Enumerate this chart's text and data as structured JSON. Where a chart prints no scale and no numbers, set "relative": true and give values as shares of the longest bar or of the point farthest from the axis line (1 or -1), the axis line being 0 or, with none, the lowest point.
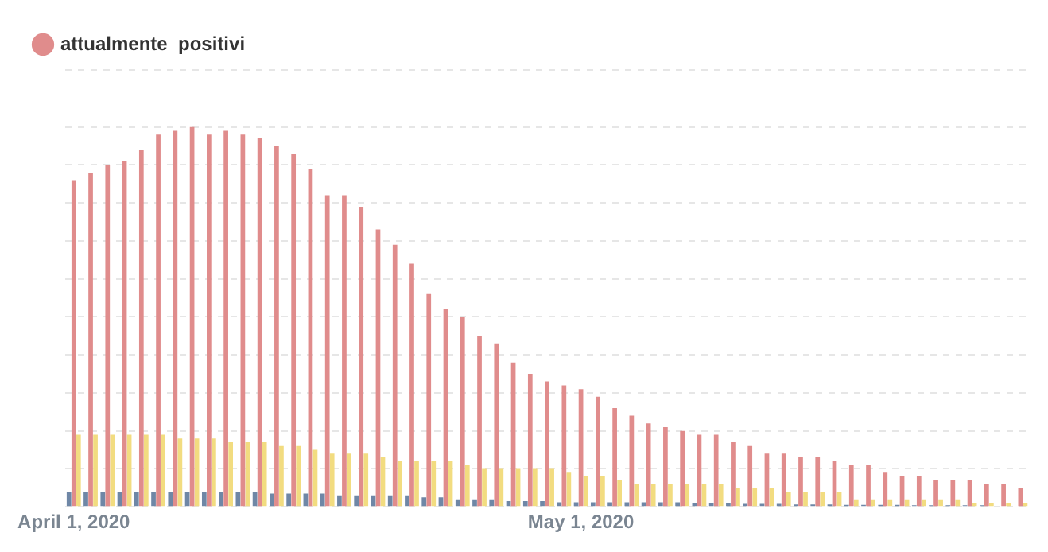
{
  "chart_data": {
    "type": "bar",
    "relative": true,
    "grid": "y",
    "legend": "top left",
    "categories": [
      "April 1, 2020",
      null,
      null,
      null,
      null,
      null,
      null,
      null,
      null,
      null,
      null,
      null,
      null,
      null,
      null,
      null,
      null,
      null,
      null,
      null,
      null,
      null,
      null,
      null,
      null,
      null,
      null,
      null,
      null,
      null,
      "May 1, 2020",
      null,
      null,
      null,
      null,
      null,
      null,
      null,
      null,
      null,
      null,
      null,
      null,
      null,
      null,
      null,
      null,
      null,
      null,
      null,
      null,
      null,
      null,
      null,
      null,
      null,
      null
    ],
    "series": [
      {
        "color": "#6f87a6",
        "values": [
          0.04,
          0.04,
          0.04,
          0.04,
          0.04,
          0.04,
          0.04,
          0.04,
          0.04,
          0.04,
          0.04,
          0.04,
          0.035,
          0.035,
          0.035,
          0.035,
          0.03,
          0.03,
          0.03,
          0.03,
          0.03,
          0.025,
          0.025,
          0.02,
          0.02,
          0.02,
          0.015,
          0.015,
          0.015,
          0.012,
          0.012,
          0.012,
          0.012,
          0.012,
          0.012,
          0.012,
          0.012,
          0.01,
          0.01,
          0.01,
          0.008,
          0.008,
          0.008,
          0.006,
          0.006,
          0.006,
          0.005,
          0.005,
          0.005,
          0.005,
          0.004,
          0.004,
          0.004,
          0.004,
          0.004,
          null,
          null
        ]
      },
      {
        "name": "attualmente_positivi",
        "color": "#e08c8c",
        "values": [
          0.86,
          0.88,
          0.9,
          0.91,
          0.94,
          0.98,
          0.99,
          1,
          0.98,
          0.99,
          0.98,
          0.97,
          0.95,
          0.93,
          0.89,
          0.82,
          0.82,
          0.79,
          0.73,
          0.69,
          0.64,
          0.56,
          0.52,
          0.5,
          0.45,
          0.43,
          0.38,
          0.35,
          0.33,
          0.32,
          0.31,
          0.29,
          0.26,
          0.24,
          0.22,
          0.21,
          0.2,
          0.19,
          0.19,
          0.17,
          0.16,
          0.14,
          0.14,
          0.13,
          0.13,
          0.12,
          0.11,
          0.11,
          0.09,
          0.08,
          0.08,
          0.07,
          0.07,
          0.07,
          0.06,
          0.06,
          0.05
        ]
      },
      {
        "color": "#f2dc80",
        "values": [
          0.19,
          0.19,
          0.19,
          0.19,
          0.19,
          0.19,
          0.18,
          0.18,
          0.18,
          0.17,
          0.17,
          0.17,
          0.16,
          0.16,
          0.15,
          0.14,
          0.14,
          0.14,
          0.13,
          0.12,
          0.12,
          0.12,
          0.12,
          0.11,
          0.1,
          0.1,
          0.1,
          0.1,
          0.1,
          0.09,
          0.08,
          0.08,
          0.07,
          0.06,
          0.06,
          0.06,
          0.06,
          0.06,
          0.06,
          0.05,
          0.05,
          0.05,
          0.04,
          0.04,
          0.04,
          0.04,
          0.02,
          0.02,
          0.02,
          0.02,
          0.02,
          0.02,
          0.02,
          0.01,
          0.01,
          0.01,
          0.01
        ]
      }
    ]
  }
}
